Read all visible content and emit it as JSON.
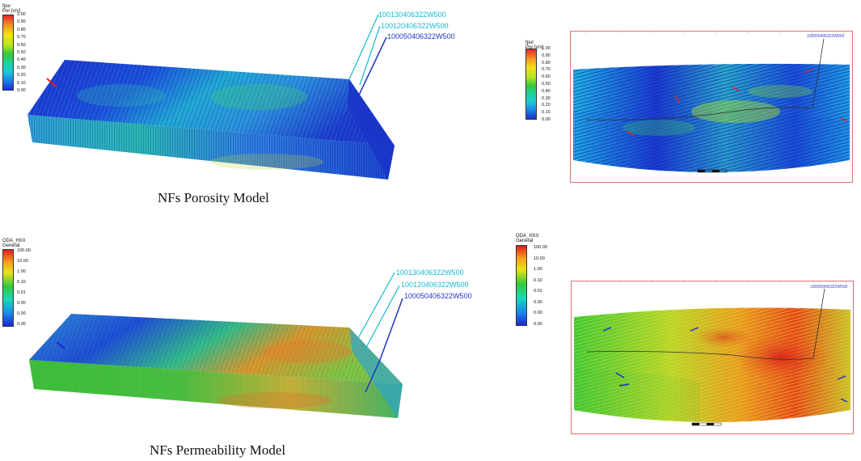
{
  "porosity_panel": {
    "colorbar": {
      "title": "fpor",
      "subtitle": "Por [v/v]",
      "ticks": [
        "1.00",
        "0.90",
        "0.80",
        "0.70",
        "0.60",
        "0.50",
        "0.40",
        "0.30",
        "0.20",
        "0.10",
        "0.00"
      ]
    },
    "wells": [
      "100130406322W500",
      "100120406322W500",
      "100050406322W500"
    ],
    "caption": "NFs Porosity Model"
  },
  "porosity_map": {
    "colorbar": {
      "title": "fpor",
      "subtitle": "Por [v/v]",
      "ticks": [
        "1.00",
        "0.90",
        "0.80",
        "0.70",
        "0.60",
        "0.50",
        "0.40",
        "0.30",
        "0.20",
        "0.10",
        "0.00"
      ]
    },
    "well": "100050406322W500"
  },
  "permeability_panel": {
    "colorbar": {
      "title": "ODA_HXX",
      "subtitle": "General",
      "ticks": [
        "100.00",
        "10.00",
        "1.00",
        "0.10",
        "0.01",
        "0.00",
        "0.00",
        "0.00"
      ]
    },
    "wells": [
      "100130406322W500",
      "100120406322W500",
      "100050406322W500"
    ],
    "caption": "NFs Permeability Model"
  },
  "permeability_map": {
    "colorbar": {
      "title": "ODA_HXX",
      "subtitle": "General",
      "ticks": [
        "100.00",
        "10.00",
        "1.00",
        "0.10",
        "0.01",
        "0.00",
        "0.00",
        "0.00"
      ]
    },
    "well": "100050406322W500"
  },
  "colors": {
    "porosity_ramp": [
      "#e8222a",
      "#f39a1f",
      "#f2e218",
      "#b9e41e",
      "#35c83b",
      "#19d39a",
      "#1cc9d8",
      "#1a7fe8",
      "#1a2fd0"
    ],
    "permeability_ramp": [
      "#e21b1b",
      "#f4a11e",
      "#e9e31a",
      "#33c93a",
      "#1bd6b8",
      "#1a86ea",
      "#1b28cc"
    ],
    "well_cyan": "#12bcd2",
    "well_blue": "#1f34c8",
    "map_frame": "#e07070"
  }
}
